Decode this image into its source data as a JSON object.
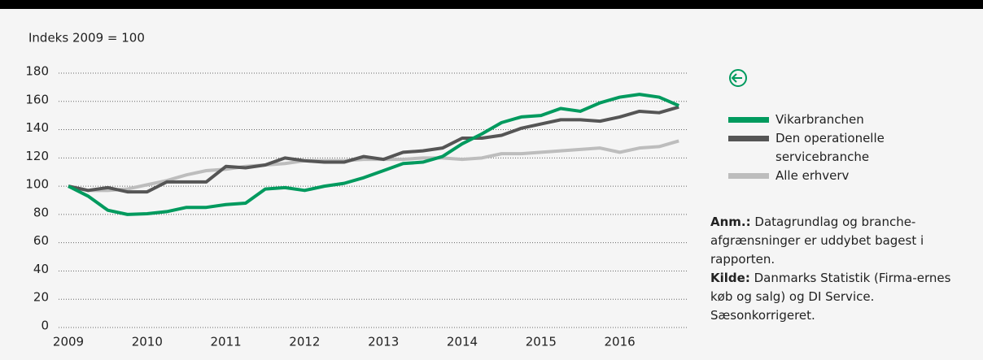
{
  "chart_data": {
    "type": "line",
    "y_label": "Indeks 2009 = 100",
    "categories": [
      "2009",
      null,
      null,
      null,
      "2010",
      null,
      null,
      null,
      "2011",
      null,
      null,
      null,
      "2012",
      null,
      null,
      null,
      "2013",
      null,
      null,
      null,
      "2014",
      null,
      null,
      null,
      "2015",
      null,
      null,
      null,
      "2016",
      null,
      null,
      null
    ],
    "series": [
      {
        "name": "Vikarbranchen",
        "color": "#009a5e",
        "values": [
          100,
          93,
          83,
          80,
          80.5,
          82,
          85,
          85,
          87,
          88,
          98,
          99,
          97,
          100,
          102,
          106,
          111,
          116,
          117,
          121,
          130,
          137,
          145,
          149,
          150,
          155,
          153,
          159,
          163,
          165,
          163,
          157
        ]
      },
      {
        "name": "Den operationelle servicebranche",
        "color": "#555555",
        "values": [
          100,
          97,
          99,
          96,
          96,
          103,
          103,
          103,
          114,
          113,
          115,
          120,
          118,
          117,
          117,
          121,
          119,
          124,
          125,
          127,
          134,
          134,
          136,
          141,
          144,
          147,
          147,
          146,
          149,
          153,
          152,
          156
        ]
      },
      {
        "name": "Alle erhverv",
        "color": "#bdbdbd",
        "values": [
          100,
          97,
          97,
          98,
          101,
          104,
          108,
          111,
          112,
          114,
          115,
          116,
          118,
          118,
          118,
          119,
          119,
          119,
          120,
          120,
          119,
          120,
          123,
          123,
          124,
          125,
          126,
          127,
          124,
          127,
          128,
          132
        ]
      }
    ],
    "ylim": [
      0,
      180
    ],
    "yticks": [
      0,
      20,
      40,
      60,
      80,
      100,
      120,
      140,
      160,
      180
    ],
    "grid": true,
    "notes": [
      {
        "label": "Anm.:",
        "text": "Datagrundlag og branche-afgrænsninger er uddybet bagest i rapporten."
      },
      {
        "label": "Kilde:",
        "text": "Danmarks Statistik (Firma-ernes køb og salg) og DI Service. Sæsonkorrigeret."
      }
    ]
  }
}
